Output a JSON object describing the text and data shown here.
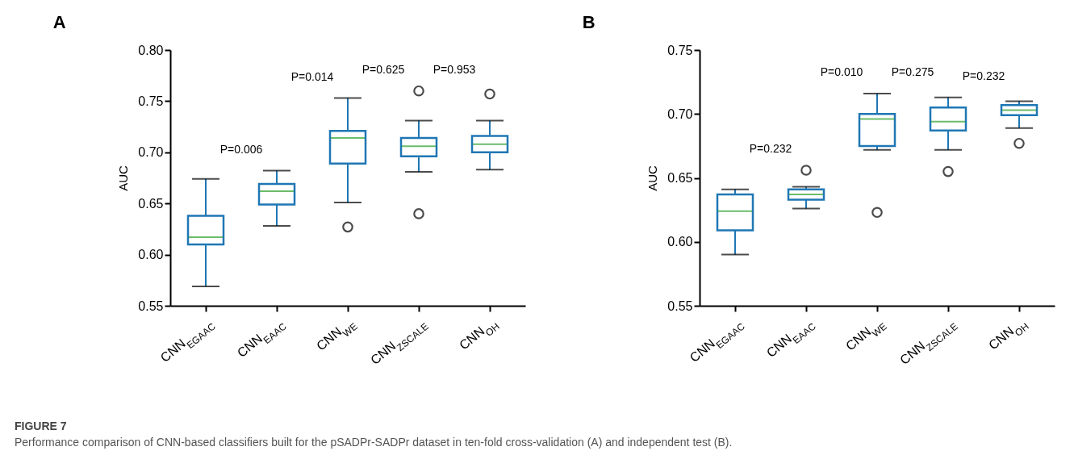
{
  "chart_data": [
    {
      "type": "box",
      "title": "A",
      "ylabel": "AUC",
      "color": "#1f77b4",
      "categories": [
        "CNN$_{EGAAC}$",
        "CNN$_{EAAC}$",
        "CNN$_{WE}$",
        "CNN$_{ZSCALE}$",
        "CNN$_{OH}$"
      ],
      "boxes": [
        {
          "low": 0.569,
          "q1": 0.61,
          "median": 0.617,
          "q3": 0.638,
          "high": 0.674
        },
        {
          "low": 0.628,
          "q1": 0.649,
          "median": 0.662,
          "q3": 0.669,
          "high": 0.682
        },
        {
          "low": 0.651,
          "q1": 0.689,
          "median": 0.714,
          "q3": 0.721,
          "high": 0.753,
          "outliers": [
            0.627
          ]
        },
        {
          "low": 0.681,
          "q1": 0.696,
          "median": 0.706,
          "q3": 0.714,
          "high": 0.731,
          "outliers": [
            0.76,
            0.64
          ]
        },
        {
          "low": 0.683,
          "q1": 0.7,
          "median": 0.708,
          "q3": 0.716,
          "high": 0.731,
          "outliers": [
            0.757
          ]
        }
      ],
      "ylim": [
        0.55,
        0.8
      ],
      "yticks": [
        0.55,
        {
          "value": 0.6,
          "label": "0.60"
        },
        0.65,
        {
          "value": 0.7,
          "label": "0.70"
        },
        0.75,
        {
          "value": 0.8,
          "label": "0.80"
        }
      ],
      "annotations": [
        "P=0.006",
        "P=0.014",
        "P=0.625",
        "P=0.953"
      ]
    },
    {
      "type": "box",
      "title": "B",
      "ylabel": "AUC",
      "color": "#1f77b4",
      "categories": [
        "CNN$_{EGAAC}$",
        "CNN$_{EAAC}$",
        "CNN$_{WE}$",
        "CNN$_{ZSCALE}$",
        "CNN$_{OH}$"
      ],
      "boxes": [
        {
          "low": 0.59,
          "q1": 0.609,
          "median": 0.624,
          "q3": 0.637,
          "high": 0.641
        },
        {
          "low": 0.626,
          "q1": 0.633,
          "median": 0.637,
          "q3": 0.641,
          "high": 0.643,
          "outliers": [
            0.656
          ]
        },
        {
          "low": 0.672,
          "q1": 0.675,
          "median": 0.696,
          "q3": 0.7,
          "high": 0.716,
          "outliers": [
            0.623
          ]
        },
        {
          "low": 0.672,
          "q1": 0.687,
          "median": 0.694,
          "q3": 0.705,
          "high": 0.713,
          "outliers": [
            0.655
          ]
        },
        {
          "low": 0.689,
          "q1": 0.699,
          "median": 0.703,
          "q3": 0.707,
          "high": 0.71,
          "outliers": [
            0.677
          ]
        }
      ],
      "ylim": [
        0.55,
        0.75
      ],
      "yticks": [
        0.55,
        {
          "value": 0.6,
          "label": "0.60"
        },
        0.65,
        {
          "value": 0.7,
          "label": "0.70"
        },
        0.75
      ],
      "annotations": [
        "P=0.232",
        "P=0.010",
        "P=0.275",
        "P=0.232",
        "FIGURE 7",
        "Performance comparison of CNN-based classifiers built for the pSADPr-SADPr dataset in ten-fold cross-validation (A) and independent test (B)."
      ]
    }
  ]
}
